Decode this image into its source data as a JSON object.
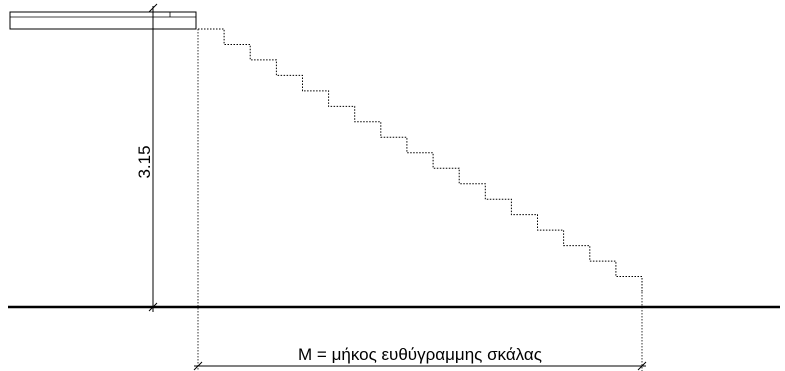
{
  "diagram": {
    "height_label": "3.15",
    "length_label": "M = μήκος ευθύγραμμης σκάλας",
    "step_count": 17,
    "colors": {
      "line": "#000000",
      "background": "#ffffff"
    }
  }
}
